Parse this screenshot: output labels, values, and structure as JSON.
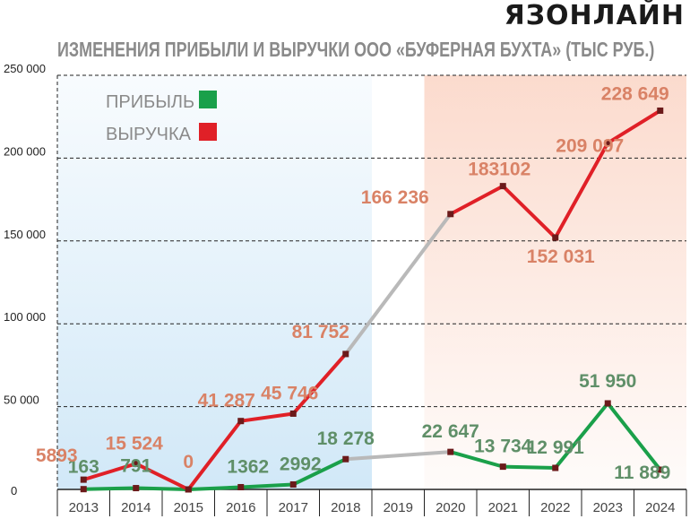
{
  "logo": "ЯЗОНЛАЙН",
  "chart_data": {
    "type": "line",
    "title": "ИЗМЕНЕНИЯ ПРИБЫЛИ И ВЫРУЧКИ ООО «БУФЕРНАЯ БУХТА» (ТЫС РУБ.)",
    "categories": [
      "2013",
      "2014",
      "2015",
      "2016",
      "2017",
      "2018",
      "2019",
      "2020",
      "2021",
      "2022",
      "2023",
      "2024"
    ],
    "ylim": [
      0,
      250000
    ],
    "yticks": [
      {
        "value": 0,
        "label": "0"
      },
      {
        "value": 50000,
        "label": "50 000"
      },
      {
        "value": 100000,
        "label": "100 000"
      },
      {
        "value": 150000,
        "label": "150 000"
      },
      {
        "value": 200000,
        "label": "200 000"
      },
      {
        "value": 250000,
        "label": "250 000"
      }
    ],
    "grid": true,
    "legend_position": "top-left",
    "series": [
      {
        "name": "ПРИБЫЛЬ",
        "color": "#1aa04a",
        "label_color": "#5f8f68",
        "values": [
          163,
          791,
          0,
          1362,
          2992,
          18278,
          null,
          22647,
          13734,
          12991,
          51950,
          11889
        ],
        "labels": [
          "163",
          "791",
          "",
          "1362",
          "2992",
          "18 278",
          "",
          "22 647",
          "13 734",
          "12 991",
          "51 950",
          "11 889"
        ]
      },
      {
        "name": "ВЫРУЧКА",
        "color": "#e02027",
        "label_color": "#d98266",
        "values": [
          5893,
          15524,
          0,
          41287,
          45746,
          81752,
          null,
          166236,
          183102,
          152031,
          209097,
          228649
        ],
        "labels": [
          "5893",
          "15 524",
          "0",
          "41 287",
          "45 746",
          "81 752",
          "",
          "166 236",
          "183102",
          "152 031",
          "209 097",
          "228 649"
        ]
      }
    ],
    "gap_color": "#b9b9b9",
    "shading": [
      {
        "from": "2013",
        "to": "2018",
        "color": "#cfe7f7"
      },
      {
        "from": "2020",
        "to": "2024",
        "color": "#fbd9cb"
      }
    ]
  }
}
